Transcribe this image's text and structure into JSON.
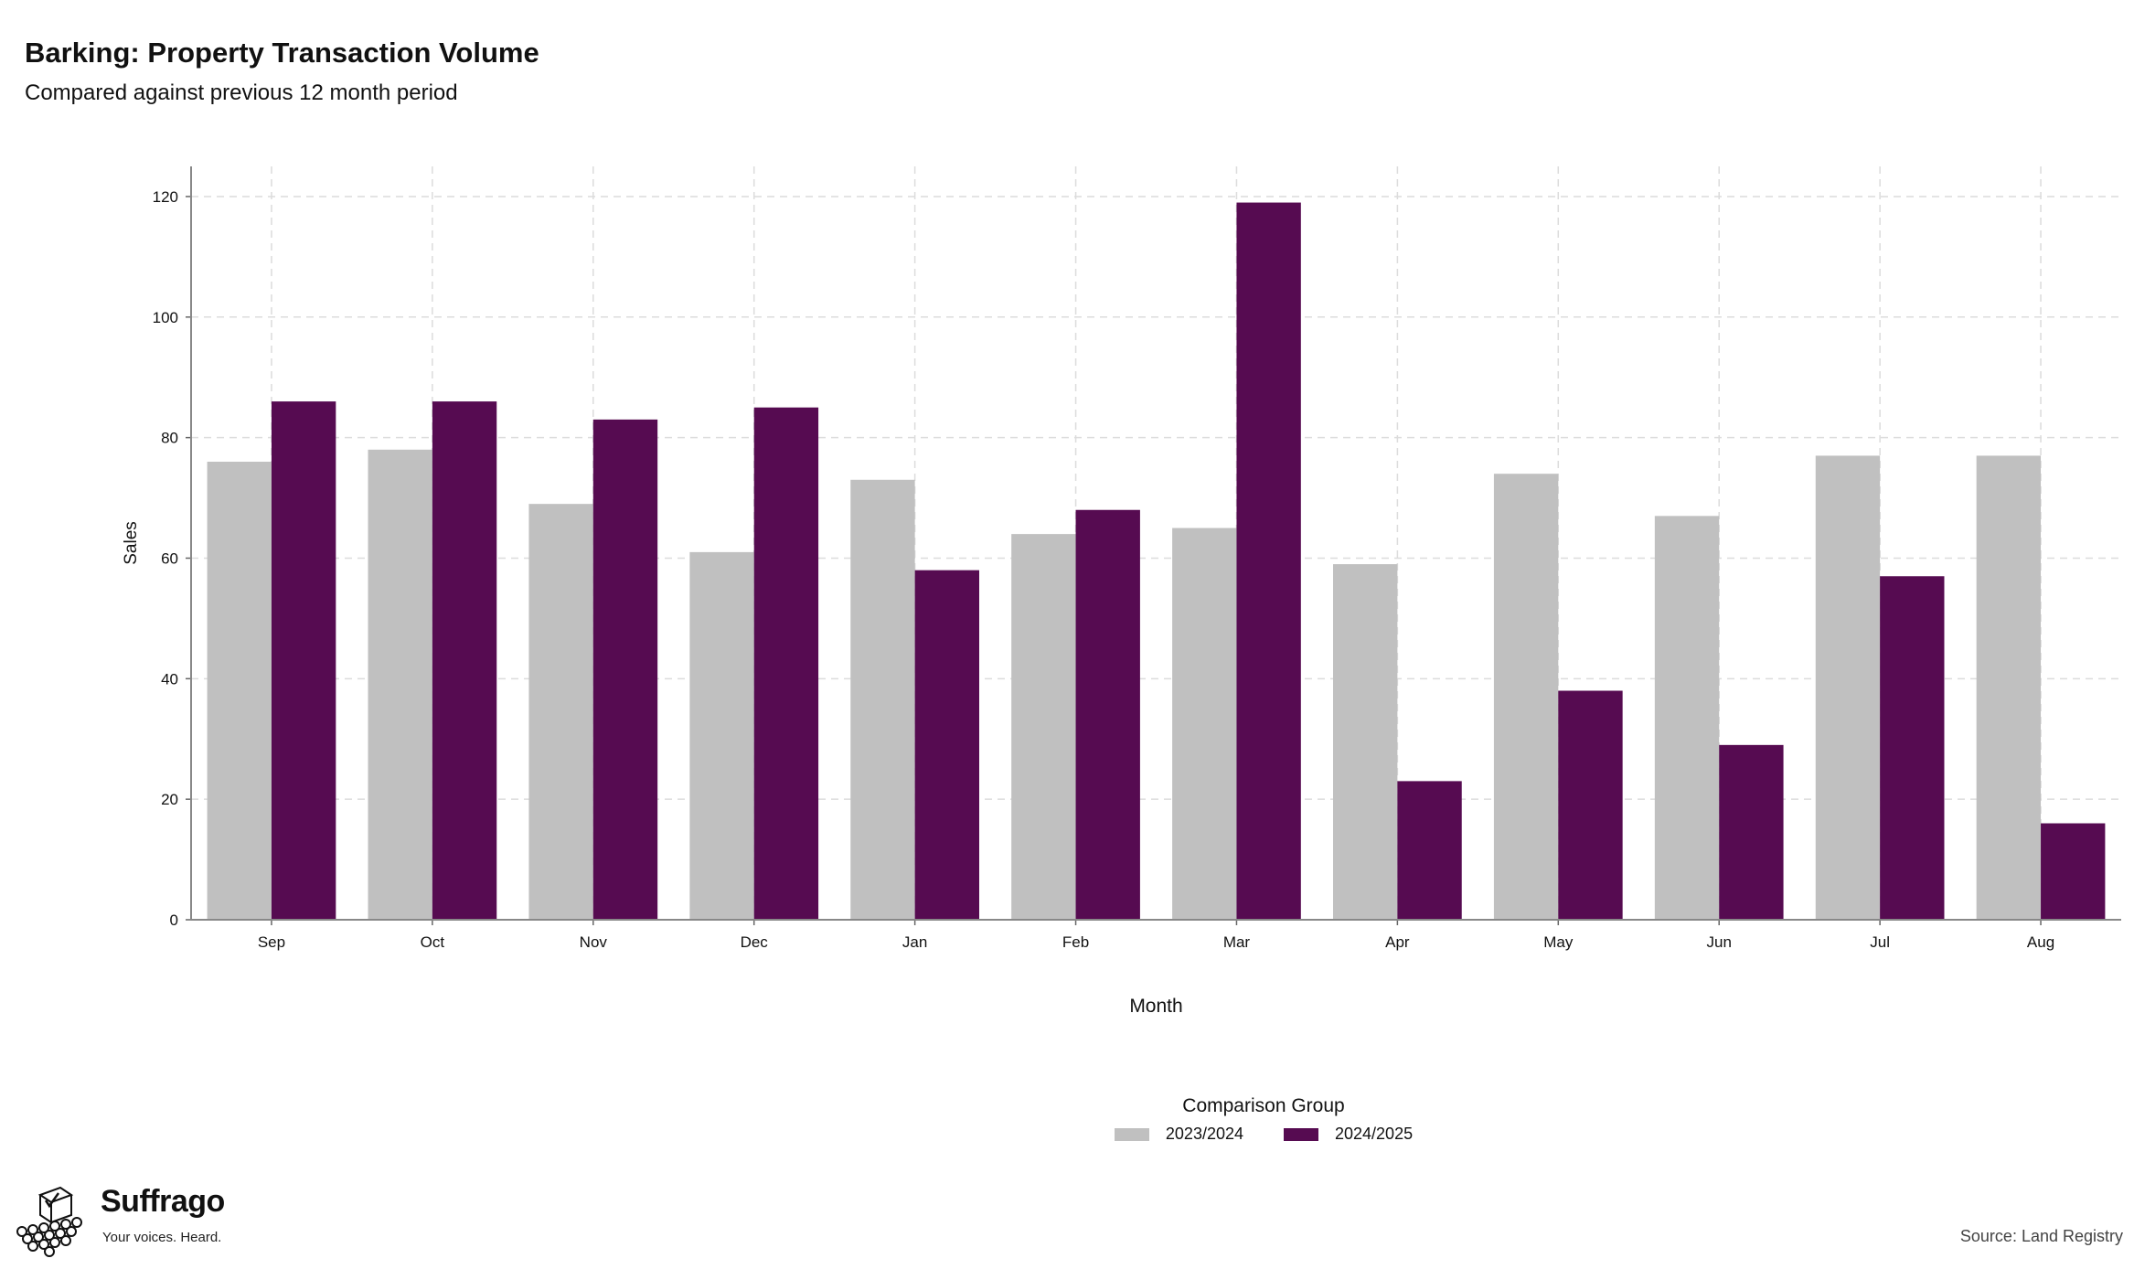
{
  "header": {
    "title": "Barking: Property Transaction Volume",
    "subtitle": "Compared against previous 12 month period"
  },
  "chart_data": {
    "type": "bar",
    "categories": [
      "Sep",
      "Oct",
      "Nov",
      "Dec",
      "Jan",
      "Feb",
      "Mar",
      "Apr",
      "May",
      "Jun",
      "Jul",
      "Aug"
    ],
    "series": [
      {
        "name": "2023/2024",
        "color": "#c0c0c0",
        "values": [
          76,
          78,
          69,
          61,
          73,
          64,
          65,
          59,
          74,
          67,
          77,
          77
        ]
      },
      {
        "name": "2024/2025",
        "color": "#560b51",
        "values": [
          86,
          86,
          83,
          85,
          58,
          68,
          119,
          23,
          38,
          29,
          57,
          16
        ]
      }
    ],
    "xlabel": "Month",
    "ylabel": "Sales",
    "ylim": [
      0,
      125
    ],
    "yticks": [
      0,
      20,
      40,
      60,
      80,
      100,
      120
    ],
    "grid": true,
    "legend_position": "bottom",
    "legend_title": "Comparison Group"
  },
  "legend": {
    "title": "Comparison Group",
    "items": [
      {
        "label": "2023/2024",
        "color": "#c0c0c0"
      },
      {
        "label": "2024/2025",
        "color": "#560b51"
      }
    ]
  },
  "branding": {
    "name": "Suffrago",
    "tagline": "Your voices. Heard."
  },
  "footer": {
    "source": "Source: Land Registry"
  }
}
